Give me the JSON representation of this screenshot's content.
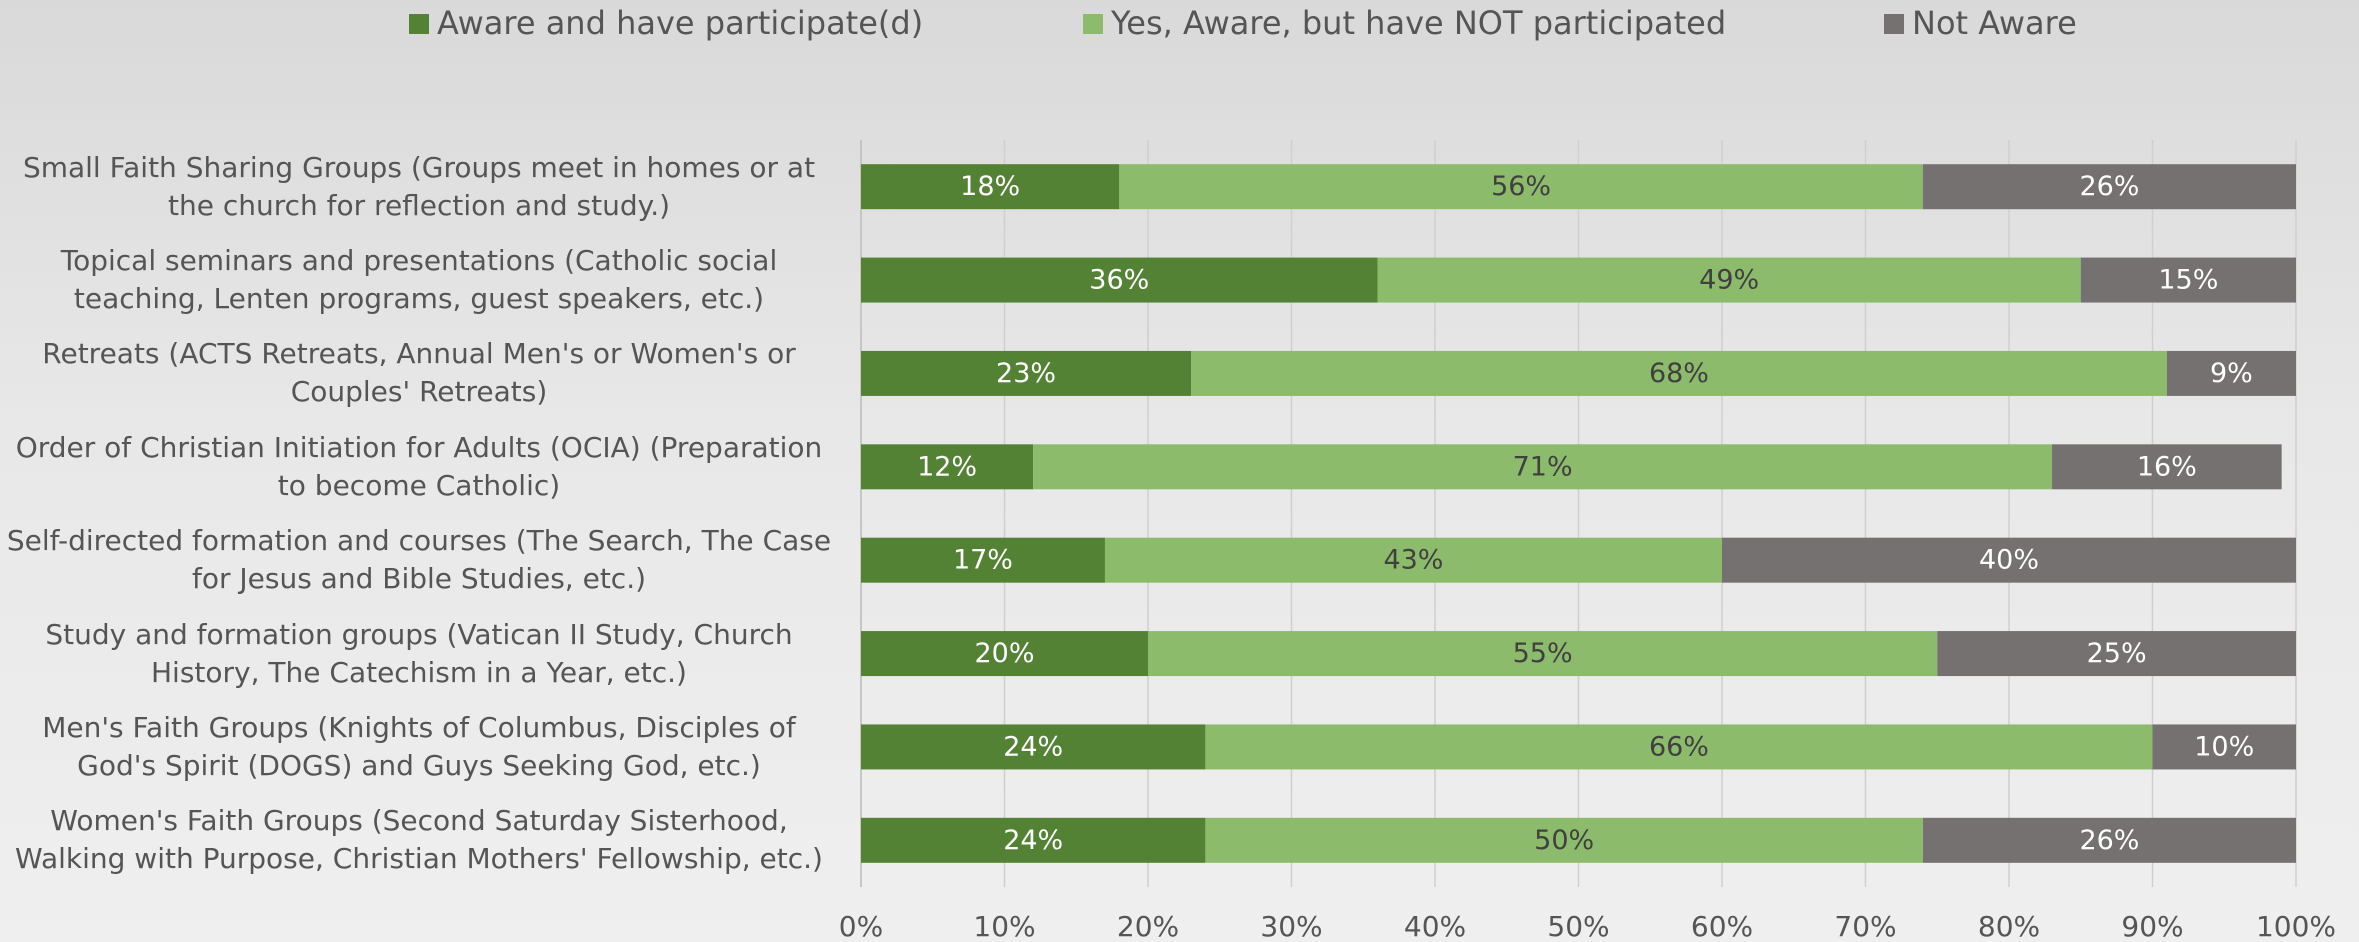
{
  "chart_data": {
    "type": "stacked_bar_horizontal",
    "categories": [
      "Small Faith Sharing Groups (Groups meet in homes or at the church for reflection and study.)",
      "Topical seminars and presentations (Catholic social teaching, Lenten programs, guest speakers, etc.)",
      "Retreats (ACTS Retreats, Annual Men's or Women's or Couples' Retreats)",
      "Order of Christian Initiation for Adults (OCIA) (Preparation to become Catholic)",
      "Self-directed formation and courses (The Search, The Case for Jesus and Bible Studies, etc.)",
      "Study and formation groups (Vatican II Study, Church History, The Catechism in a Year, etc.)",
      "Men's Faith Groups (Knights of Columbus, Disciples of God's Spirit (DOGS) and Guys Seeking God, etc.)",
      "Women's Faith Groups (Second Saturday Sisterhood, Walking with Purpose, Christian Mothers' Fellowship, etc.)"
    ],
    "series": [
      {
        "name": "Aware and have participate(d)",
        "color": "#548235",
        "label_color": "#ffffff",
        "values": [
          18,
          36,
          23,
          12,
          17,
          20,
          24,
          24
        ],
        "value_labels": [
          "18%",
          "36%",
          "23%",
          "12%",
          "17%",
          "20%",
          "24%",
          "24%"
        ]
      },
      {
        "name": "Yes, Aware, but have NOT participated",
        "color": "#8dbb6c",
        "label_color": "#404040",
        "values": [
          56,
          49,
          68,
          71,
          43,
          55,
          66,
          50
        ],
        "value_labels": [
          "56%",
          "49%",
          "68%",
          "71%",
          "43%",
          "55%",
          "66%",
          "50%"
        ]
      },
      {
        "name": "Not Aware",
        "color": "#767171",
        "label_color": "#ffffff",
        "values": [
          26,
          15,
          9,
          16,
          40,
          25,
          10,
          26
        ],
        "value_labels": [
          "26%",
          "15%",
          "9%",
          "16%",
          "40%",
          "25%",
          "10%",
          "26%"
        ]
      }
    ],
    "xlim": [
      0,
      100
    ],
    "xticks": [
      {
        "value": 0,
        "label": "0%"
      },
      {
        "value": 10,
        "label": "10%"
      },
      {
        "value": 20,
        "label": "20%"
      },
      {
        "value": 30,
        "label": "30%"
      },
      {
        "value": 40,
        "label": "40%"
      },
      {
        "value": 50,
        "label": "50%"
      },
      {
        "value": 60,
        "label": "60%"
      },
      {
        "value": 70,
        "label": "70%"
      },
      {
        "value": 80,
        "label": "80%"
      },
      {
        "value": 90,
        "label": "90%"
      },
      {
        "value": 100,
        "label": "100%"
      }
    ],
    "grid": true,
    "legend": "top"
  }
}
